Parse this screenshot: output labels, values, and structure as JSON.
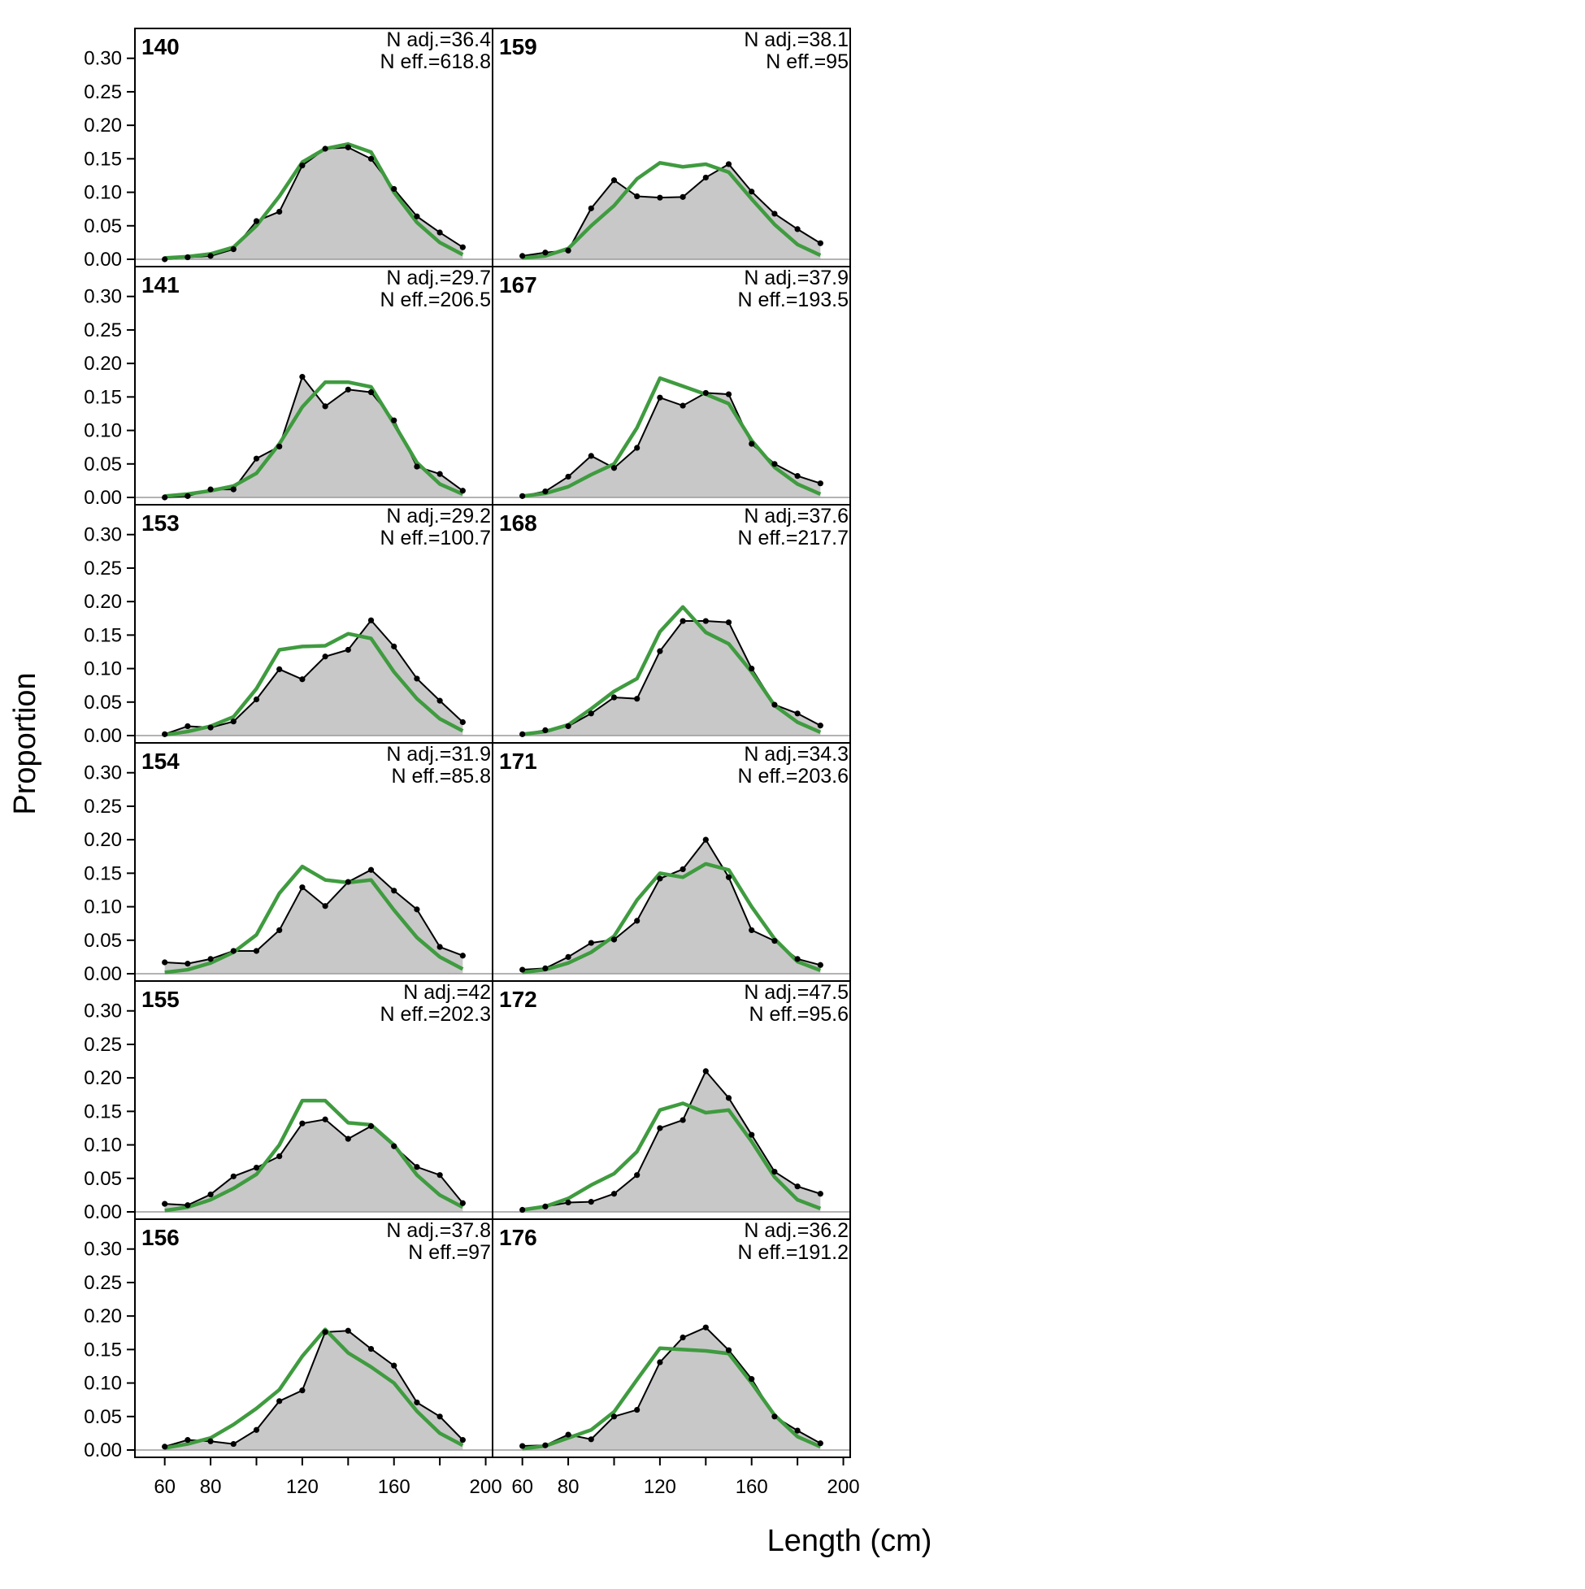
{
  "colors": {
    "observed_fill": "#c8c8c8",
    "observed_line": "#000000",
    "expected_line": "#3f9b3f",
    "zero_line": "#9a9a9a",
    "frame": "#000000"
  },
  "chart_data": {
    "type": "area",
    "xlabel": "Length (cm)",
    "ylabel": "Proportion",
    "x": [
      60,
      70,
      80,
      90,
      100,
      110,
      120,
      130,
      140,
      150,
      160,
      170,
      180,
      190
    ],
    "xlim": [
      47,
      203
    ],
    "ylim": [
      0,
      0.33
    ],
    "x_ticks": [
      60,
      80,
      120,
      160,
      200
    ],
    "y_ticks": [
      "0.00",
      "0.05",
      "0.10",
      "0.15",
      "0.20",
      "0.25",
      "0.30"
    ],
    "grid": false,
    "legend": "none",
    "panels": [
      {
        "id": "140",
        "n_adj": "N adj.=36.4",
        "n_eff": "N eff.=618.8",
        "observed": [
          0.0,
          0.003,
          0.005,
          0.015,
          0.057,
          0.071,
          0.14,
          0.165,
          0.167,
          0.15,
          0.105,
          0.064,
          0.04,
          0.018
        ],
        "expected": [
          0.002,
          0.004,
          0.008,
          0.018,
          0.05,
          0.094,
          0.145,
          0.165,
          0.172,
          0.16,
          0.1,
          0.055,
          0.025,
          0.007
        ]
      },
      {
        "id": "141",
        "n_adj": "N adj.=29.7",
        "n_eff": "N eff.=206.5",
        "observed": [
          0.0,
          0.002,
          0.012,
          0.012,
          0.058,
          0.076,
          0.18,
          0.136,
          0.161,
          0.157,
          0.115,
          0.046,
          0.035,
          0.01
        ],
        "expected": [
          0.002,
          0.005,
          0.01,
          0.017,
          0.036,
          0.08,
          0.135,
          0.172,
          0.172,
          0.165,
          0.11,
          0.052,
          0.02,
          0.005
        ]
      },
      {
        "id": "153",
        "n_adj": "N adj.=29.2",
        "n_eff": "N eff.=100.7",
        "observed": [
          0.002,
          0.014,
          0.012,
          0.021,
          0.054,
          0.099,
          0.084,
          0.118,
          0.128,
          0.172,
          0.133,
          0.085,
          0.052,
          0.02
        ],
        "expected": [
          0.001,
          0.006,
          0.014,
          0.028,
          0.07,
          0.128,
          0.133,
          0.134,
          0.152,
          0.145,
          0.095,
          0.055,
          0.025,
          0.007
        ]
      },
      {
        "id": "154",
        "n_adj": "N adj.=31.9",
        "n_eff": "N eff.=85.8",
        "observed": [
          0.017,
          0.015,
          0.022,
          0.034,
          0.034,
          0.065,
          0.129,
          0.101,
          0.137,
          0.155,
          0.124,
          0.096,
          0.04,
          0.027
        ],
        "expected": [
          0.002,
          0.006,
          0.016,
          0.032,
          0.058,
          0.12,
          0.16,
          0.14,
          0.136,
          0.14,
          0.095,
          0.054,
          0.025,
          0.007
        ]
      },
      {
        "id": "155",
        "n_adj": "N adj.=42",
        "n_eff": "N eff.=202.3",
        "observed": [
          0.012,
          0.01,
          0.026,
          0.053,
          0.066,
          0.083,
          0.132,
          0.138,
          0.109,
          0.128,
          0.098,
          0.067,
          0.055,
          0.013
        ],
        "expected": [
          0.002,
          0.007,
          0.018,
          0.035,
          0.056,
          0.1,
          0.166,
          0.166,
          0.133,
          0.13,
          0.1,
          0.055,
          0.025,
          0.007
        ]
      },
      {
        "id": "156",
        "n_adj": "N adj.=37.8",
        "n_eff": "N eff.=97",
        "observed": [
          0.005,
          0.015,
          0.013,
          0.009,
          0.03,
          0.073,
          0.089,
          0.176,
          0.178,
          0.151,
          0.126,
          0.071,
          0.05,
          0.015
        ],
        "expected": [
          0.003,
          0.009,
          0.018,
          0.038,
          0.062,
          0.09,
          0.14,
          0.18,
          0.145,
          0.124,
          0.1,
          0.058,
          0.025,
          0.007
        ]
      },
      {
        "id": "159",
        "n_adj": "N adj.=38.1",
        "n_eff": "N eff.=95",
        "observed": [
          0.005,
          0.01,
          0.013,
          0.076,
          0.118,
          0.094,
          0.092,
          0.093,
          0.122,
          0.142,
          0.101,
          0.068,
          0.045,
          0.024
        ],
        "expected": [
          0.002,
          0.005,
          0.016,
          0.05,
          0.08,
          0.12,
          0.144,
          0.138,
          0.142,
          0.13,
          0.09,
          0.052,
          0.022,
          0.006
        ]
      },
      {
        "id": "167",
        "n_adj": "N adj.=37.9",
        "n_eff": "N eff.=193.5",
        "observed": [
          0.002,
          0.009,
          0.031,
          0.062,
          0.044,
          0.074,
          0.149,
          0.137,
          0.156,
          0.154,
          0.08,
          0.05,
          0.032,
          0.021
        ],
        "expected": [
          0.002,
          0.006,
          0.016,
          0.034,
          0.05,
          0.104,
          0.178,
          0.166,
          0.154,
          0.14,
          0.085,
          0.045,
          0.02,
          0.005
        ]
      },
      {
        "id": "168",
        "n_adj": "N adj.=37.6",
        "n_eff": "N eff.=217.7",
        "observed": [
          0.002,
          0.008,
          0.014,
          0.033,
          0.057,
          0.055,
          0.126,
          0.171,
          0.171,
          0.169,
          0.1,
          0.046,
          0.033,
          0.015
        ],
        "expected": [
          0.002,
          0.006,
          0.016,
          0.04,
          0.066,
          0.085,
          0.155,
          0.192,
          0.154,
          0.137,
          0.095,
          0.045,
          0.02,
          0.005
        ]
      },
      {
        "id": "171",
        "n_adj": "N adj.=34.3",
        "n_eff": "N eff.=203.6",
        "observed": [
          0.006,
          0.008,
          0.025,
          0.046,
          0.051,
          0.079,
          0.142,
          0.156,
          0.2,
          0.144,
          0.065,
          0.049,
          0.022,
          0.013
        ],
        "expected": [
          0.002,
          0.006,
          0.016,
          0.032,
          0.056,
          0.11,
          0.15,
          0.144,
          0.164,
          0.155,
          0.1,
          0.052,
          0.018,
          0.005
        ]
      },
      {
        "id": "172",
        "n_adj": "N adj.=47.5",
        "n_eff": "N eff.=95.6",
        "observed": [
          0.003,
          0.008,
          0.014,
          0.015,
          0.027,
          0.055,
          0.125,
          0.137,
          0.21,
          0.17,
          0.115,
          0.06,
          0.038,
          0.027
        ],
        "expected": [
          0.003,
          0.008,
          0.02,
          0.04,
          0.057,
          0.09,
          0.152,
          0.162,
          0.148,
          0.152,
          0.105,
          0.052,
          0.018,
          0.005
        ]
      },
      {
        "id": "176",
        "n_adj": "N adj.=36.2",
        "n_eff": "N eff.=191.2",
        "observed": [
          0.006,
          0.007,
          0.023,
          0.016,
          0.05,
          0.06,
          0.131,
          0.168,
          0.183,
          0.149,
          0.106,
          0.05,
          0.029,
          0.01
        ],
        "expected": [
          0.002,
          0.006,
          0.018,
          0.03,
          0.057,
          0.105,
          0.152,
          0.15,
          0.148,
          0.144,
          0.1,
          0.052,
          0.02,
          0.005
        ]
      }
    ]
  }
}
